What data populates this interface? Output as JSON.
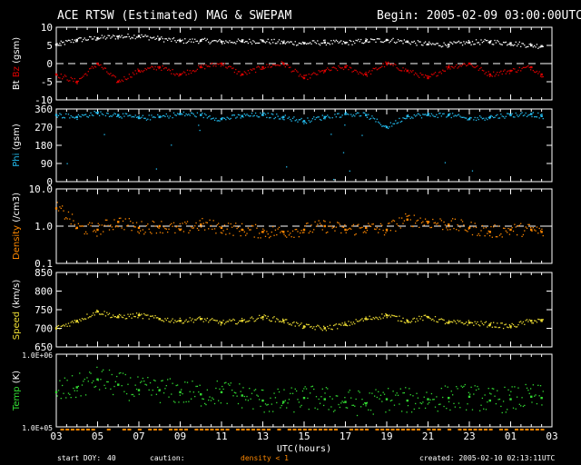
{
  "header": {
    "title": "ACE RTSW (Estimated) MAG & SWEPAM",
    "begin": "Begin: 2005-02-09 03:00:00UTC"
  },
  "footer": {
    "start_doy_label": "start DOY:",
    "start_doy_value": "40",
    "caution_label": "caution:",
    "caution_value": "density < 1",
    "created": "created: 2005-02-10 02:13:11UTC"
  },
  "colors": {
    "background": "#000000",
    "frame": "#ffffff",
    "bt": "#ffffff",
    "bz": "#dd0000",
    "phi": "#22bbee",
    "density": "#ff8800",
    "speed": "#eedd33",
    "temp": "#33dd33",
    "caution": "#ff8800"
  },
  "chart_data": {
    "type": "scatter",
    "x_axis": {
      "label": "UTC(hours)",
      "ticks": [
        "03",
        "05",
        "07",
        "09",
        "11",
        "13",
        "15",
        "17",
        "19",
        "21",
        "23",
        "01",
        "03"
      ],
      "range_hours": [
        0,
        24
      ]
    },
    "panels": [
      {
        "id": "mag",
        "ylabels": [
          {
            "text": "Bt",
            "color": "#ffffff"
          },
          {
            "text": "Bz",
            "color": "#dd0000"
          },
          {
            "text": "(gsm)",
            "color": "#ffffff"
          }
        ],
        "scale": "linear",
        "ylim": [
          -10,
          10
        ],
        "yticks": [
          "10",
          "5",
          "0",
          "-5",
          "-10"
        ],
        "ytick_values": [
          10,
          5,
          0,
          -5,
          -10
        ],
        "ref_line": 0,
        "series": [
          {
            "name": "Bt",
            "color": "#ffffff",
            "hours": [
              0,
              1,
              2,
              3,
              4,
              5,
              6,
              7,
              8,
              9,
              10,
              11,
              12,
              13,
              14,
              15,
              16,
              17,
              18,
              19,
              20,
              21,
              22,
              23,
              23.5
            ],
            "values": [
              5.2,
              6.5,
              7.0,
              7.4,
              7.6,
              6.8,
              6.2,
              6.3,
              6.0,
              6.1,
              6.2,
              5.8,
              5.6,
              5.8,
              5.7,
              6.2,
              6.5,
              6.0,
              5.3,
              5.2,
              5.8,
              6.0,
              5.6,
              5.0,
              4.8
            ]
          },
          {
            "name": "Bz",
            "color": "#dd0000",
            "hours": [
              0,
              1,
              2,
              3,
              4,
              5,
              6,
              7,
              8,
              9,
              10,
              11,
              12,
              13,
              14,
              15,
              16,
              17,
              18,
              19,
              20,
              21,
              22,
              23,
              23.5
            ],
            "values": [
              -3,
              -5,
              0,
              -5,
              -2,
              -1,
              -3,
              -1,
              0,
              -3,
              -1,
              0,
              -4,
              -2,
              -1,
              -3,
              0,
              -2,
              -4,
              -1,
              0,
              -3,
              -2,
              -1,
              -3
            ]
          }
        ]
      },
      {
        "id": "phi",
        "ylabels": [
          {
            "text": "Phi",
            "color": "#22bbee"
          },
          {
            "text": "(gsm)",
            "color": "#ffffff"
          }
        ],
        "scale": "linear",
        "ylim": [
          0,
          360
        ],
        "yticks": [
          "360",
          "270",
          "180",
          "90",
          "0"
        ],
        "ytick_values": [
          360,
          270,
          180,
          90,
          0
        ],
        "series": [
          {
            "name": "Phi",
            "color": "#22bbee",
            "hours": [
              0,
              1,
              2,
              3,
              4,
              5,
              6,
              7,
              8,
              9,
              10,
              11,
              12,
              13,
              14,
              15,
              16,
              17,
              18,
              19,
              20,
              21,
              22,
              23,
              23.5
            ],
            "values": [
              330,
              320,
              340,
              330,
              315,
              320,
              335,
              330,
              310,
              325,
              330,
              320,
              300,
              320,
              335,
              330,
              270,
              325,
              330,
              330,
              310,
              320,
              330,
              335,
              325
            ]
          }
        ]
      },
      {
        "id": "density",
        "ylabels": [
          {
            "text": "Density",
            "color": "#ff8800"
          },
          {
            "text": "(/cm3)",
            "color": "#ffffff"
          }
        ],
        "scale": "log",
        "ylim": [
          0.1,
          10
        ],
        "yticks": [
          "10.0",
          "1.0",
          "0.1"
        ],
        "ytick_values": [
          10,
          1,
          0.1
        ],
        "ref_line": 1,
        "series": [
          {
            "name": "Density",
            "color": "#ff8800",
            "hours": [
              0,
              1,
              2,
              3,
              4,
              5,
              6,
              7,
              8,
              9,
              10,
              11,
              12,
              13,
              14,
              15,
              16,
              17,
              18,
              19,
              20,
              21,
              22,
              23,
              23.5
            ],
            "values": [
              3.0,
              0.9,
              0.8,
              1.3,
              0.9,
              1.0,
              0.8,
              1.1,
              0.9,
              0.8,
              0.7,
              0.7,
              0.8,
              1.0,
              0.8,
              0.9,
              0.8,
              1.5,
              1.3,
              1.1,
              0.9,
              0.7,
              0.8,
              0.8,
              0.7
            ]
          }
        ]
      },
      {
        "id": "speed",
        "ylabels": [
          {
            "text": "Speed",
            "color": "#eedd33"
          },
          {
            "text": "(km/s)",
            "color": "#ffffff"
          }
        ],
        "scale": "linear",
        "ylim": [
          650,
          850
        ],
        "yticks": [
          "850",
          "800",
          "750",
          "700",
          "650"
        ],
        "ytick_values": [
          850,
          800,
          750,
          700,
          650
        ],
        "series": [
          {
            "name": "Speed",
            "color": "#eedd33",
            "hours": [
              0,
              1,
              2,
              3,
              4,
              5,
              6,
              7,
              8,
              9,
              10,
              11,
              12,
              13,
              14,
              15,
              16,
              17,
              18,
              19,
              20,
              21,
              22,
              23,
              23.5
            ],
            "values": [
              700,
              720,
              745,
              730,
              735,
              725,
              720,
              725,
              715,
              720,
              730,
              720,
              705,
              700,
              710,
              725,
              735,
              720,
              730,
              715,
              715,
              710,
              705,
              720,
              720
            ]
          }
        ]
      },
      {
        "id": "temp",
        "ylabels": [
          {
            "text": "Temp",
            "color": "#33dd33"
          },
          {
            "text": "(K)",
            "color": "#ffffff"
          }
        ],
        "scale": "log",
        "ylim": [
          100000,
          1000000
        ],
        "yticks": [
          "1.0E+06",
          "1.0E+05"
        ],
        "ytick_values": [
          1000000,
          100000
        ],
        "series": [
          {
            "name": "Temp",
            "color": "#33dd33",
            "hours": [
              0,
              1,
              2,
              3,
              4,
              5,
              6,
              7,
              8,
              9,
              10,
              11,
              12,
              13,
              14,
              15,
              16,
              17,
              18,
              19,
              20,
              21,
              22,
              23,
              23.5
            ],
            "values": [
              300000,
              350000,
              450000,
              380000,
              320000,
              320000,
              300000,
              280000,
              300000,
              270000,
              230000,
              220000,
              250000,
              240000,
              220000,
              210000,
              240000,
              230000,
              240000,
              250000,
              260000,
              230000,
              240000,
              260000,
              250000
            ]
          }
        ]
      }
    ]
  }
}
